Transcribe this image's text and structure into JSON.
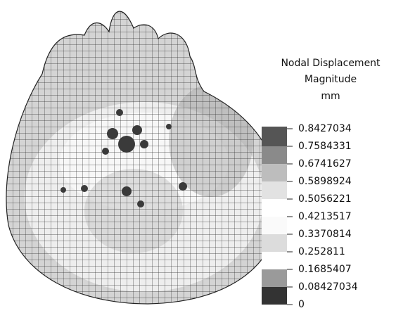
{
  "legend": {
    "title": [
      "Nodal Displacement",
      "Magnitude",
      "mm"
    ],
    "levels": [
      "0.8427034",
      "0.7584331",
      "0.6741627",
      "0.5898924",
      "0.5056221",
      "0.4213517",
      "0.3370814",
      "0.252811",
      "0.1685407",
      "0.08427034",
      "0"
    ]
  }
}
